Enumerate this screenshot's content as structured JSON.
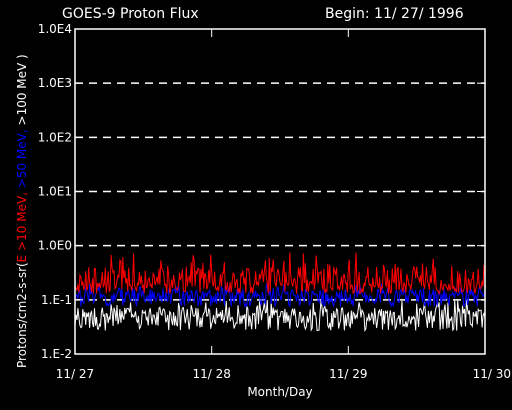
{
  "chart_data": {
    "type": "line",
    "title": "GOES-9 Proton Flux",
    "begin_label": "Begin: 11/ 27/ 1996",
    "xlabel": "Month/Day",
    "ylabel_parts": [
      {
        "text": "Protons/cm2-s-sr(",
        "color": "#ffffff"
      },
      {
        "text": "E >10 MeV,",
        "color": "#ff0000"
      },
      {
        "text": " >50 MeV,",
        "color": "#0000ff"
      },
      {
        "text": " >100 MeV )",
        "color": "#ffffff"
      }
    ],
    "x_ticks": [
      "11/ 27",
      "11/ 28",
      "11/ 29",
      "11/ 30"
    ],
    "x_range_days": [
      0,
      3
    ],
    "y_scale": "log",
    "ylim": [
      0.01,
      10000
    ],
    "y_ticks": [
      {
        "value": 0.01,
        "label": "1.E-2"
      },
      {
        "value": 0.1,
        "label": "1.E-1"
      },
      {
        "value": 1,
        "label": "1.0E0"
      },
      {
        "value": 10,
        "label": "1.0E1"
      },
      {
        "value": 100,
        "label": "1.0E2"
      },
      {
        "value": 1000,
        "label": "1.0E3"
      },
      {
        "value": 10000,
        "label": "1.0E4"
      }
    ],
    "grid": "dashed horizontal at decades",
    "series": [
      {
        "name": "E >10 MeV",
        "color": "#ff0000",
        "baseline": 0.2,
        "low": 0.13,
        "high": 0.75
      },
      {
        "name": ">50 MeV",
        "color": "#0000ff",
        "baseline": 0.12,
        "low": 0.075,
        "high": 0.2
      },
      {
        "name": ">100 MeV",
        "color": "#ffffff",
        "baseline": 0.05,
        "low": 0.027,
        "high": 0.1
      }
    ]
  }
}
